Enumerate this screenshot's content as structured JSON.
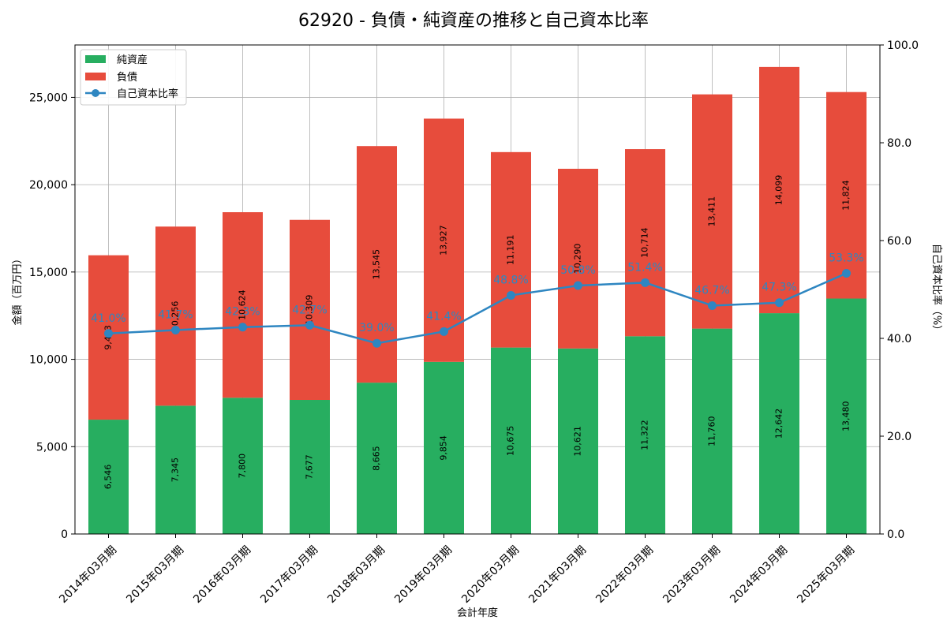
{
  "chart_data": {
    "type": "bar",
    "title": "62920 - 負債・純資産の推移と自己資本比率",
    "xlabel": "会計年度",
    "ylabel": "金額（百万円）",
    "y2label": "自己資本比率（%）",
    "ylim": [
      0,
      28000
    ],
    "y2lim": [
      0,
      100
    ],
    "yticks": [
      0,
      5000,
      10000,
      15000,
      20000,
      25000
    ],
    "y2ticks": [
      0,
      20,
      40,
      60,
      80,
      100
    ],
    "grid": true,
    "legend_position": "top-left",
    "categories": [
      "2014年03月期",
      "2015年03月期",
      "2016年03月期",
      "2017年03月期",
      "2018年03月期",
      "2019年03月期",
      "2020年03月期",
      "2021年03月期",
      "2022年03月期",
      "2023年03月期",
      "2024年03月期",
      "2025年03月期"
    ],
    "series": [
      {
        "name": "純資産",
        "kind": "bar",
        "color": "#27ae60",
        "values": [
          6546,
          7345,
          7800,
          7677,
          8665,
          9854,
          10675,
          10621,
          11322,
          11760,
          12642,
          13480
        ]
      },
      {
        "name": "負債",
        "kind": "bar",
        "color": "#e74c3c",
        "values": [
          9413,
          10256,
          10624,
          10309,
          13545,
          13927,
          11191,
          10290,
          10714,
          13411,
          14099,
          11824
        ]
      },
      {
        "name": "自己資本比率",
        "kind": "line",
        "axis": "right",
        "color": "#2e86c1",
        "values": [
          41.0,
          41.7,
          42.3,
          42.7,
          39.0,
          41.4,
          48.8,
          50.8,
          51.4,
          46.7,
          47.3,
          53.3
        ]
      }
    ]
  }
}
